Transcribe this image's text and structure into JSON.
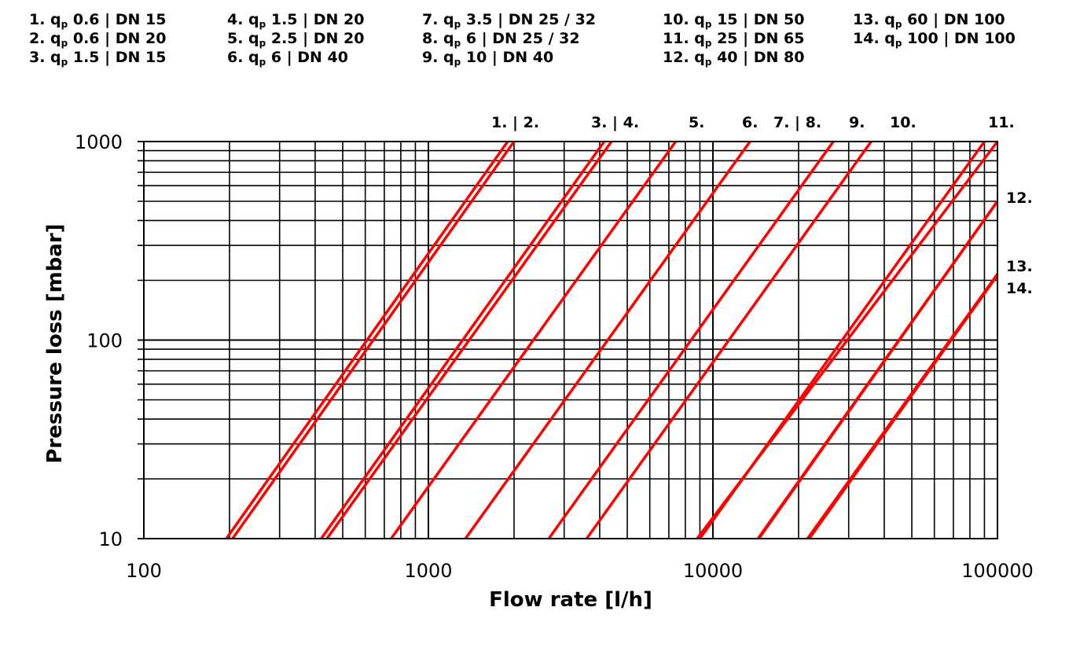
{
  "legend": [
    {
      "num": "1.",
      "q": "0.6",
      "dn": "DN 15"
    },
    {
      "num": "2.",
      "q": "0.6",
      "dn": "DN 20"
    },
    {
      "num": "3.",
      "q": "1.5",
      "dn": "DN 15"
    },
    {
      "num": "4.",
      "q": "1.5",
      "dn": "DN 20"
    },
    {
      "num": "5.",
      "q": "2.5",
      "dn": "DN 20"
    },
    {
      "num": "6.",
      "q": "6",
      "dn": "DN 40"
    },
    {
      "num": "7.",
      "q": "3.5",
      "dn": "DN 25 / 32"
    },
    {
      "num": "8.",
      "q": "6",
      "dn": "DN 25 / 32"
    },
    {
      "num": "9.",
      "q": "10",
      "dn": "DN 40"
    },
    {
      "num": "10.",
      "q": "15",
      "dn": "DN 50"
    },
    {
      "num": "11.",
      "q": "25",
      "dn": "DN 65"
    },
    {
      "num": "12.",
      "q": "40",
      "dn": "DN 80"
    },
    {
      "num": "13.",
      "q": "60",
      "dn": "DN 100"
    },
    {
      "num": "14.",
      "q": "100",
      "dn": "DN 100"
    }
  ],
  "legend_symbol": "q",
  "legend_subscript": "p",
  "colors": {
    "curve": "#ff0000",
    "grid": "#000000"
  },
  "chart_data": {
    "type": "line",
    "xscale": "log",
    "yscale": "log",
    "xlabel": "Flow rate [l/h]",
    "ylabel": "Pressure loss [mbar]",
    "xlim": [
      100,
      100000
    ],
    "ylim": [
      10,
      1000
    ],
    "xticks": [
      "100",
      "1000",
      "10000",
      "100000"
    ],
    "yticks": [
      "10",
      "100",
      "1000"
    ],
    "grid": true,
    "top_labels": [
      "1. | 2.",
      "3. | 4.",
      "5.",
      "6.",
      "7. | 8.",
      "9.",
      "10.",
      "11."
    ],
    "right_labels": [
      "12.",
      "13.",
      "14."
    ],
    "series": [
      {
        "name": "1.",
        "x": [
          195,
          1900
        ],
        "y": [
          10,
          1000
        ]
      },
      {
        "name": "2.",
        "x": [
          205,
          2000
        ],
        "y": [
          10,
          1000
        ]
      },
      {
        "name": "3.",
        "x": [
          420,
          4150
        ],
        "y": [
          10,
          1000
        ]
      },
      {
        "name": "4.",
        "x": [
          440,
          4400
        ],
        "y": [
          10,
          1000
        ]
      },
      {
        "name": "5.",
        "x": [
          740,
          7400
        ],
        "y": [
          10,
          1000
        ]
      },
      {
        "name": "6.",
        "x": [
          1350,
          13500
        ],
        "y": [
          10,
          1000
        ]
      },
      {
        "name": "7.",
        "x": [
          2650,
          26500
        ],
        "y": [
          10,
          1000
        ]
      },
      {
        "name": "8.",
        "x": [
          3600,
          36000
        ],
        "y": [
          10,
          1000
        ]
      },
      {
        "name": "9.",
        "x": [
          8800,
          100000
        ],
        "y": [
          10,
          1000
        ]
      },
      {
        "name": "10.",
        "x": [
          14500,
          100000
        ],
        "y": [
          10,
          500
        ]
      },
      {
        "name": "11.",
        "x": [
          21500,
          100000
        ],
        "y": [
          10,
          215
        ]
      },
      {
        "name": "12.",
        "x": [
          9000,
          90000
        ],
        "y": [
          10,
          1000
        ]
      },
      {
        "name": "13.",
        "x": [
          14400,
          100000
        ],
        "y": [
          10,
          500
        ]
      },
      {
        "name": "14.",
        "x": [
          21800,
          100000
        ],
        "y": [
          10,
          212
        ]
      }
    ]
  }
}
